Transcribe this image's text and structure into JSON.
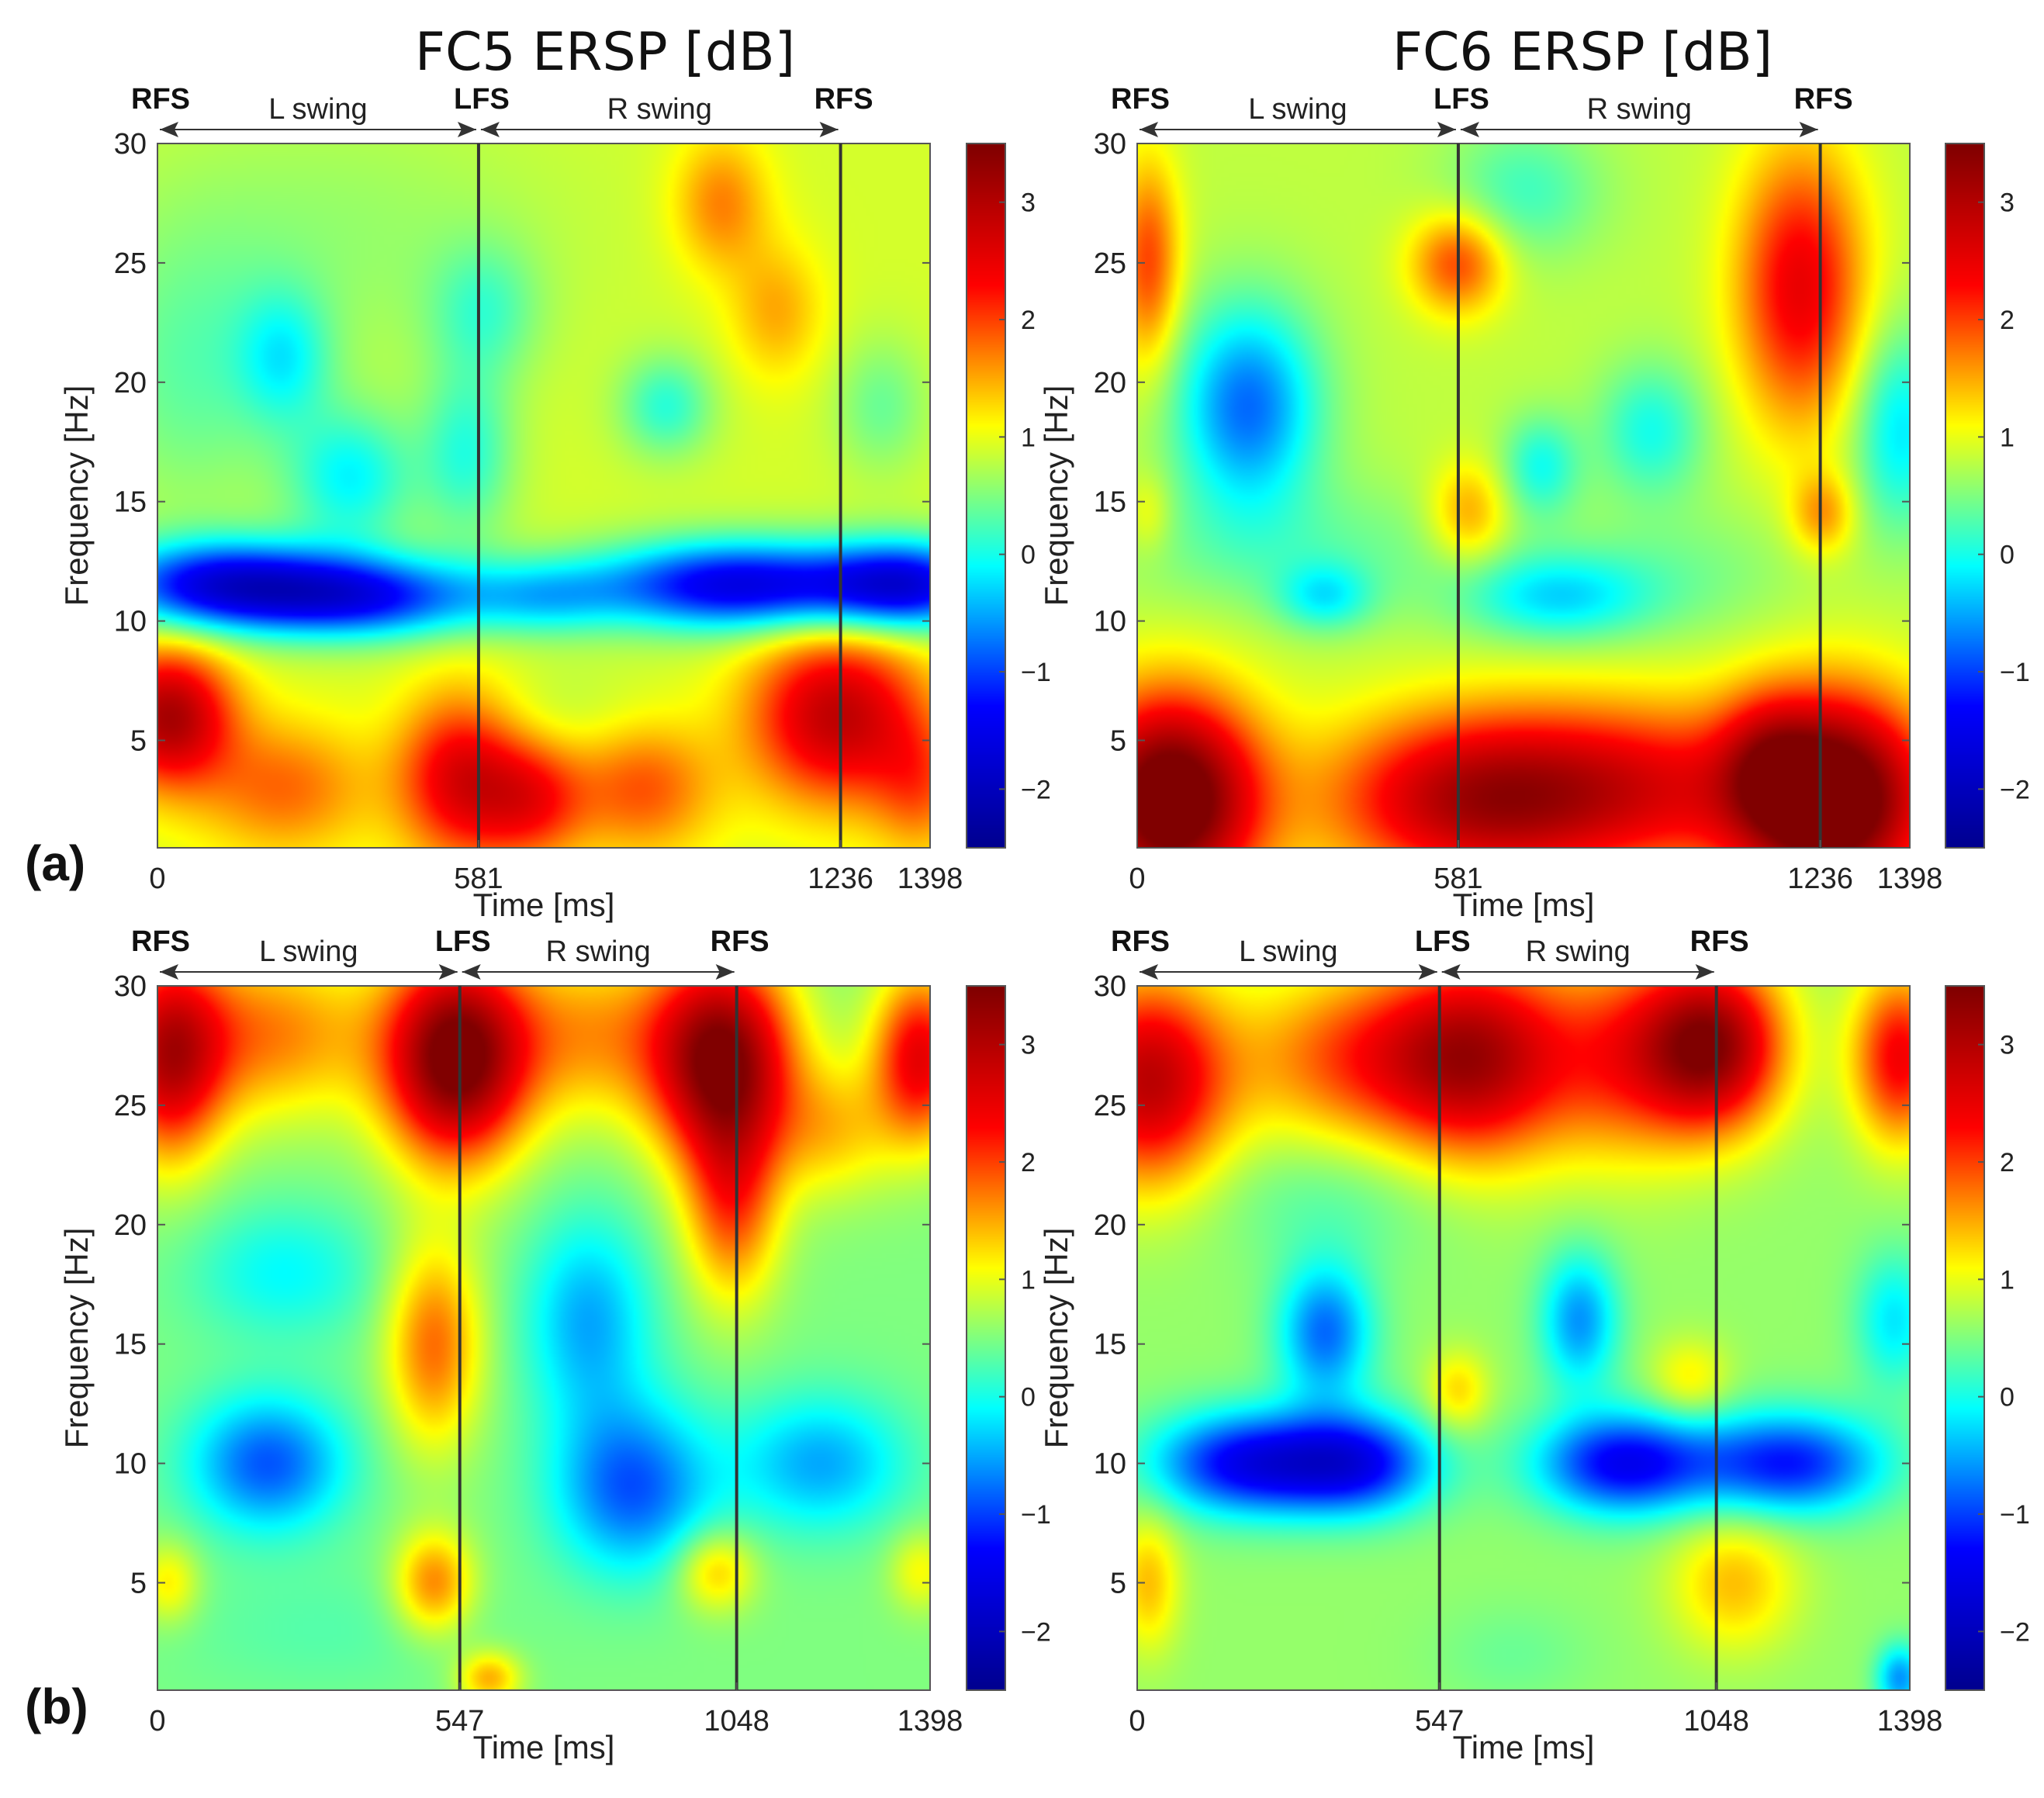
{
  "figure": {
    "column_titles": [
      "FC5 ERSP [dB]",
      "FC6 ERSP [dB]"
    ],
    "row_labels": [
      "(a)",
      "(b)"
    ]
  },
  "colormap": {
    "name": "jet",
    "stops": [
      "#00008f",
      "#0000ff",
      "#00ffff",
      "#ffff00",
      "#ff0000",
      "#800000"
    ]
  },
  "chart_data": [
    {
      "type": "heatmap",
      "id": "a-fc5",
      "title": "FC5 ERSP [dB]",
      "panel": "(a)",
      "xlabel": "Time [ms]",
      "ylabel": "Frequency [Hz]",
      "xlim": [
        0,
        1398
      ],
      "ylim": [
        0.5,
        30
      ],
      "xticks": [
        0,
        581,
        1236,
        1398
      ],
      "xtick_labels": [
        "0",
        "581",
        "1236",
        "1398"
      ],
      "yticks": [
        5,
        10,
        15,
        20,
        25,
        30
      ],
      "ytick_labels": [
        "5",
        "10",
        "15",
        "20",
        "25",
        "30"
      ],
      "events": [
        {
          "t": 0,
          "label": "RFS"
        },
        {
          "t": 581,
          "label": "LFS"
        },
        {
          "t": 1236,
          "label": "RFS"
        }
      ],
      "vlines": [
        581,
        1236
      ],
      "phases": [
        {
          "label": "L swing",
          "from": 0,
          "to": 581
        },
        {
          "label": "R swing",
          "from": 581,
          "to": 1236
        }
      ],
      "colorbar": {
        "range": [
          -2.5,
          3.5
        ],
        "ticks": [
          -2,
          -1,
          0,
          1,
          2,
          3
        ],
        "tick_labels": [
          "−2",
          "−1",
          "0",
          "1",
          "2",
          "3"
        ]
      },
      "base": 0.9,
      "features": [
        {
          "t": 120,
          "f": 11.5,
          "st": 150,
          "sf": 1.3,
          "v": -2.4
        },
        {
          "t": 380,
          "f": 11,
          "st": 150,
          "sf": 1.2,
          "v": -2.0
        },
        {
          "t": 700,
          "f": 11,
          "st": 100,
          "sf": 1.1,
          "v": -0.9
        },
        {
          "t": 1050,
          "f": 11.5,
          "st": 180,
          "sf": 1.3,
          "v": -2.5
        },
        {
          "t": 1360,
          "f": 11.5,
          "st": 110,
          "sf": 1.3,
          "v": -2.2
        },
        {
          "t": 350,
          "f": 16,
          "st": 80,
          "sf": 2,
          "v": -1.0
        },
        {
          "t": 560,
          "f": 17,
          "st": 60,
          "sf": 2.5,
          "v": -0.8
        },
        {
          "t": 230,
          "f": 21,
          "st": 60,
          "sf": 2,
          "v": -0.8
        },
        {
          "t": 60,
          "f": 20,
          "st": 120,
          "sf": 4,
          "v": -0.5
        },
        {
          "t": 920,
          "f": 19,
          "st": 60,
          "sf": 1.5,
          "v": -0.8
        },
        {
          "t": 1310,
          "f": 19,
          "st": 60,
          "sf": 2,
          "v": -0.5
        },
        {
          "t": 590,
          "f": 23,
          "st": 70,
          "sf": 2,
          "v": -0.6
        },
        {
          "t": 300,
          "f": 26,
          "st": 300,
          "sf": 4,
          "v": -0.3
        },
        {
          "t": 1020,
          "f": 27.5,
          "st": 60,
          "sf": 2,
          "v": 0.8
        },
        {
          "t": 1120,
          "f": 23,
          "st": 60,
          "sf": 2,
          "v": 0.6
        },
        {
          "t": 20,
          "f": 6,
          "st": 80,
          "sf": 2,
          "v": 2.2
        },
        {
          "t": 550,
          "f": 3.5,
          "st": 80,
          "sf": 2.5,
          "v": 1.7
        },
        {
          "t": 680,
          "f": 2.5,
          "st": 70,
          "sf": 1.8,
          "v": 1.2
        },
        {
          "t": 1230,
          "f": 6,
          "st": 110,
          "sf": 2.5,
          "v": 2.0
        },
        {
          "t": 230,
          "f": 3,
          "st": 110,
          "sf": 2,
          "v": 0.9
        },
        {
          "t": 880,
          "f": 3,
          "st": 90,
          "sf": 2,
          "v": 1.0
        },
        {
          "t": 1380,
          "f": 3,
          "st": 60,
          "sf": 2,
          "v": 0.8
        },
        {
          "t": 700,
          "f": 6,
          "st": 150,
          "sf": 1.5,
          "v": -0.2
        }
      ]
    },
    {
      "type": "heatmap",
      "id": "a-fc6",
      "title": "FC6 ERSP [dB]",
      "panel": "(a)",
      "xlabel": "Time [ms]",
      "ylabel": "Frequency [Hz]",
      "xlim": [
        0,
        1398
      ],
      "ylim": [
        0.5,
        30
      ],
      "xticks": [
        0,
        581,
        1236,
        1398
      ],
      "xtick_labels": [
        "0",
        "581",
        "1236",
        "1398"
      ],
      "yticks": [
        5,
        10,
        15,
        20,
        25,
        30
      ],
      "ytick_labels": [
        "5",
        "10",
        "15",
        "20",
        "25",
        "30"
      ],
      "events": [
        {
          "t": 0,
          "label": "RFS"
        },
        {
          "t": 581,
          "label": "LFS"
        },
        {
          "t": 1236,
          "label": "RFS"
        }
      ],
      "vlines": [
        581,
        1236
      ],
      "phases": [
        {
          "label": "L swing",
          "from": 0,
          "to": 581
        },
        {
          "label": "R swing",
          "from": 581,
          "to": 1236
        }
      ],
      "colorbar": {
        "range": [
          -2.5,
          3.5
        ],
        "ticks": [
          -2,
          -1,
          0,
          1,
          2,
          3
        ],
        "tick_labels": [
          "−2",
          "−1",
          "0",
          "1",
          "2",
          "3"
        ]
      },
      "base": 0.8,
      "features": [
        {
          "t": 60,
          "f": 2.5,
          "st": 110,
          "sf": 3,
          "v": 3.3
        },
        {
          "t": 1260,
          "f": 2.5,
          "st": 120,
          "sf": 3,
          "v": 3.3
        },
        {
          "t": 600,
          "f": 2.5,
          "st": 180,
          "sf": 2.5,
          "v": 2.0
        },
        {
          "t": 900,
          "f": 3,
          "st": 200,
          "sf": 2.5,
          "v": 1.5
        },
        {
          "t": 1140,
          "f": 4,
          "st": 60,
          "sf": 2,
          "v": 0.8
        },
        {
          "t": 1200,
          "f": 24,
          "st": 80,
          "sf": 4,
          "v": 1.7
        },
        {
          "t": 580,
          "f": 25,
          "st": 60,
          "sf": 1.5,
          "v": 1.2
        },
        {
          "t": 20,
          "f": 25,
          "st": 40,
          "sf": 3,
          "v": 1.2
        },
        {
          "t": 1240,
          "f": 14.5,
          "st": 40,
          "sf": 1.2,
          "v": 0.8
        },
        {
          "t": 600,
          "f": 14.5,
          "st": 50,
          "sf": 1.5,
          "v": 0.8
        },
        {
          "t": 20,
          "f": 14.5,
          "st": 30,
          "sf": 1.2,
          "v": 0.4
        },
        {
          "t": 200,
          "f": 19,
          "st": 90,
          "sf": 3,
          "v": -1.6
        },
        {
          "t": 930,
          "f": 18,
          "st": 70,
          "sf": 2,
          "v": -0.8
        },
        {
          "t": 730,
          "f": 16.5,
          "st": 50,
          "sf": 1.5,
          "v": -0.8
        },
        {
          "t": 760,
          "f": 11,
          "st": 120,
          "sf": 1.3,
          "v": -1.0
        },
        {
          "t": 340,
          "f": 11,
          "st": 60,
          "sf": 1,
          "v": -0.8
        },
        {
          "t": 1380,
          "f": 18,
          "st": 60,
          "sf": 3,
          "v": -1.0
        },
        {
          "t": 700,
          "f": 28,
          "st": 100,
          "sf": 2,
          "v": -0.6
        },
        {
          "t": 300,
          "f": 13,
          "st": 250,
          "sf": 2,
          "v": -0.4
        },
        {
          "t": 1000,
          "f": 12,
          "st": 150,
          "sf": 2,
          "v": -0.3
        }
      ]
    },
    {
      "type": "heatmap",
      "id": "b-fc5",
      "title": "FC5 ERSP [dB]",
      "panel": "(b)",
      "xlabel": "Time [ms]",
      "ylabel": "Frequency [Hz]",
      "xlim": [
        0,
        1398
      ],
      "ylim": [
        0.5,
        30
      ],
      "xticks": [
        0,
        547,
        1048,
        1398
      ],
      "xtick_labels": [
        "0",
        "547",
        "1048",
        "1398"
      ],
      "yticks": [
        5,
        10,
        15,
        20,
        25,
        30
      ],
      "ytick_labels": [
        "5",
        "10",
        "15",
        "20",
        "25",
        "30"
      ],
      "events": [
        {
          "t": 0,
          "label": "RFS"
        },
        {
          "t": 547,
          "label": "LFS"
        },
        {
          "t": 1048,
          "label": "RFS"
        }
      ],
      "vlines": [
        547,
        1048
      ],
      "phases": [
        {
          "label": "L swing",
          "from": 0,
          "to": 547
        },
        {
          "label": "R swing",
          "from": 547,
          "to": 1048
        }
      ],
      "colorbar": {
        "range": [
          -2.5,
          3.5
        ],
        "ticks": [
          -2,
          -1,
          0,
          1,
          2,
          3
        ],
        "tick_labels": [
          "−2",
          "−1",
          "0",
          "1",
          "2",
          "3"
        ]
      },
      "base": 0.5,
      "features": [
        {
          "t": 540,
          "f": 27,
          "st": 90,
          "sf": 3,
          "v": 3.2
        },
        {
          "t": 1020,
          "f": 27,
          "st": 90,
          "sf": 3,
          "v": 3.0
        },
        {
          "t": 20,
          "f": 27,
          "st": 70,
          "sf": 3,
          "v": 2.2
        },
        {
          "t": 1380,
          "f": 27,
          "st": 60,
          "sf": 2.5,
          "v": 2.0
        },
        {
          "t": 200,
          "f": 28,
          "st": 140,
          "sf": 2.5,
          "v": 1.2
        },
        {
          "t": 780,
          "f": 28,
          "st": 120,
          "sf": 2.5,
          "v": 1.0
        },
        {
          "t": 500,
          "f": 15,
          "st": 60,
          "sf": 3,
          "v": 1.3
        },
        {
          "t": 1040,
          "f": 21,
          "st": 60,
          "sf": 3,
          "v": 1.4
        },
        {
          "t": 1220,
          "f": 24,
          "st": 80,
          "sf": 2,
          "v": 0.8
        },
        {
          "t": 200,
          "f": 10,
          "st": 100,
          "sf": 2,
          "v": -1.4
        },
        {
          "t": 860,
          "f": 9,
          "st": 100,
          "sf": 2.5,
          "v": -1.4
        },
        {
          "t": 780,
          "f": 16,
          "st": 80,
          "sf": 3,
          "v": -1.0
        },
        {
          "t": 1200,
          "f": 10,
          "st": 110,
          "sf": 2,
          "v": -1.0
        },
        {
          "t": 230,
          "f": 18,
          "st": 120,
          "sf": 2,
          "v": -0.6
        },
        {
          "t": 500,
          "f": 5,
          "st": 50,
          "sf": 1.5,
          "v": 1.2
        },
        {
          "t": 1010,
          "f": 5.5,
          "st": 50,
          "sf": 1.2,
          "v": 0.9
        },
        {
          "t": 20,
          "f": 5,
          "st": 40,
          "sf": 1.2,
          "v": 0.7
        },
        {
          "t": 1380,
          "f": 5.5,
          "st": 40,
          "sf": 1.2,
          "v": 0.6
        },
        {
          "t": 600,
          "f": 1,
          "st": 40,
          "sf": 0.8,
          "v": 1.0
        },
        {
          "t": 300,
          "f": 3,
          "st": 200,
          "sf": 2,
          "v": -0.2
        }
      ]
    },
    {
      "type": "heatmap",
      "id": "b-fc6",
      "title": "FC6 ERSP [dB]",
      "panel": "(b)",
      "xlabel": "Time [ms]",
      "ylabel": "Frequency [Hz]",
      "xlim": [
        0,
        1398
      ],
      "ylim": [
        0.5,
        30
      ],
      "xticks": [
        0,
        547,
        1048,
        1398
      ],
      "xtick_labels": [
        "0",
        "547",
        "1048",
        "1398"
      ],
      "yticks": [
        5,
        10,
        15,
        20,
        25,
        30
      ],
      "ytick_labels": [
        "5",
        "10",
        "15",
        "20",
        "25",
        "30"
      ],
      "events": [
        {
          "t": 0,
          "label": "RFS"
        },
        {
          "t": 547,
          "label": "LFS"
        },
        {
          "t": 1048,
          "label": "RFS"
        }
      ],
      "vlines": [
        547,
        1048
      ],
      "phases": [
        {
          "label": "L swing",
          "from": 0,
          "to": 547
        },
        {
          "label": "R swing",
          "from": 547,
          "to": 1048
        }
      ],
      "colorbar": {
        "range": [
          -2.5,
          3.5
        ],
        "ticks": [
          -2,
          -1,
          0,
          1,
          2,
          3
        ],
        "tick_labels": [
          "−2",
          "−1",
          "0",
          "1",
          "2",
          "3"
        ]
      },
      "base": 0.6,
      "features": [
        {
          "t": 20,
          "f": 26,
          "st": 100,
          "sf": 3,
          "v": 2.3
        },
        {
          "t": 620,
          "f": 27,
          "st": 120,
          "sf": 3,
          "v": 2.2
        },
        {
          "t": 1040,
          "f": 27.5,
          "st": 90,
          "sf": 2.5,
          "v": 2.7
        },
        {
          "t": 1380,
          "f": 27,
          "st": 60,
          "sf": 2.5,
          "v": 1.8
        },
        {
          "t": 400,
          "f": 27,
          "st": 150,
          "sf": 2.5,
          "v": 1.3
        },
        {
          "t": 880,
          "f": 27,
          "st": 100,
          "sf": 3,
          "v": 1.2
        },
        {
          "t": 200,
          "f": 10,
          "st": 120,
          "sf": 1.5,
          "v": -2.0
        },
        {
          "t": 400,
          "f": 10,
          "st": 100,
          "sf": 1.5,
          "v": -1.8
        },
        {
          "t": 880,
          "f": 10,
          "st": 110,
          "sf": 1.5,
          "v": -2.0
        },
        {
          "t": 1180,
          "f": 10,
          "st": 120,
          "sf": 1.5,
          "v": -1.8
        },
        {
          "t": 340,
          "f": 15.5,
          "st": 60,
          "sf": 2,
          "v": -1.4
        },
        {
          "t": 800,
          "f": 16,
          "st": 50,
          "sf": 2,
          "v": -1.2
        },
        {
          "t": 1370,
          "f": 16,
          "st": 50,
          "sf": 2,
          "v": -0.8
        },
        {
          "t": 20,
          "f": 5,
          "st": 40,
          "sf": 2,
          "v": 0.8
        },
        {
          "t": 1080,
          "f": 5,
          "st": 80,
          "sf": 2,
          "v": 0.8
        },
        {
          "t": 580,
          "f": 13,
          "st": 40,
          "sf": 1.2,
          "v": 0.7
        },
        {
          "t": 1000,
          "f": 13.5,
          "st": 50,
          "sf": 1.2,
          "v": 0.6
        },
        {
          "t": 680,
          "f": 2,
          "st": 100,
          "sf": 1.5,
          "v": -0.2
        },
        {
          "t": 1380,
          "f": 1,
          "st": 30,
          "sf": 1,
          "v": -1.2
        },
        {
          "t": 350,
          "f": 21,
          "st": 150,
          "sf": 2,
          "v": -0.3
        }
      ]
    }
  ]
}
